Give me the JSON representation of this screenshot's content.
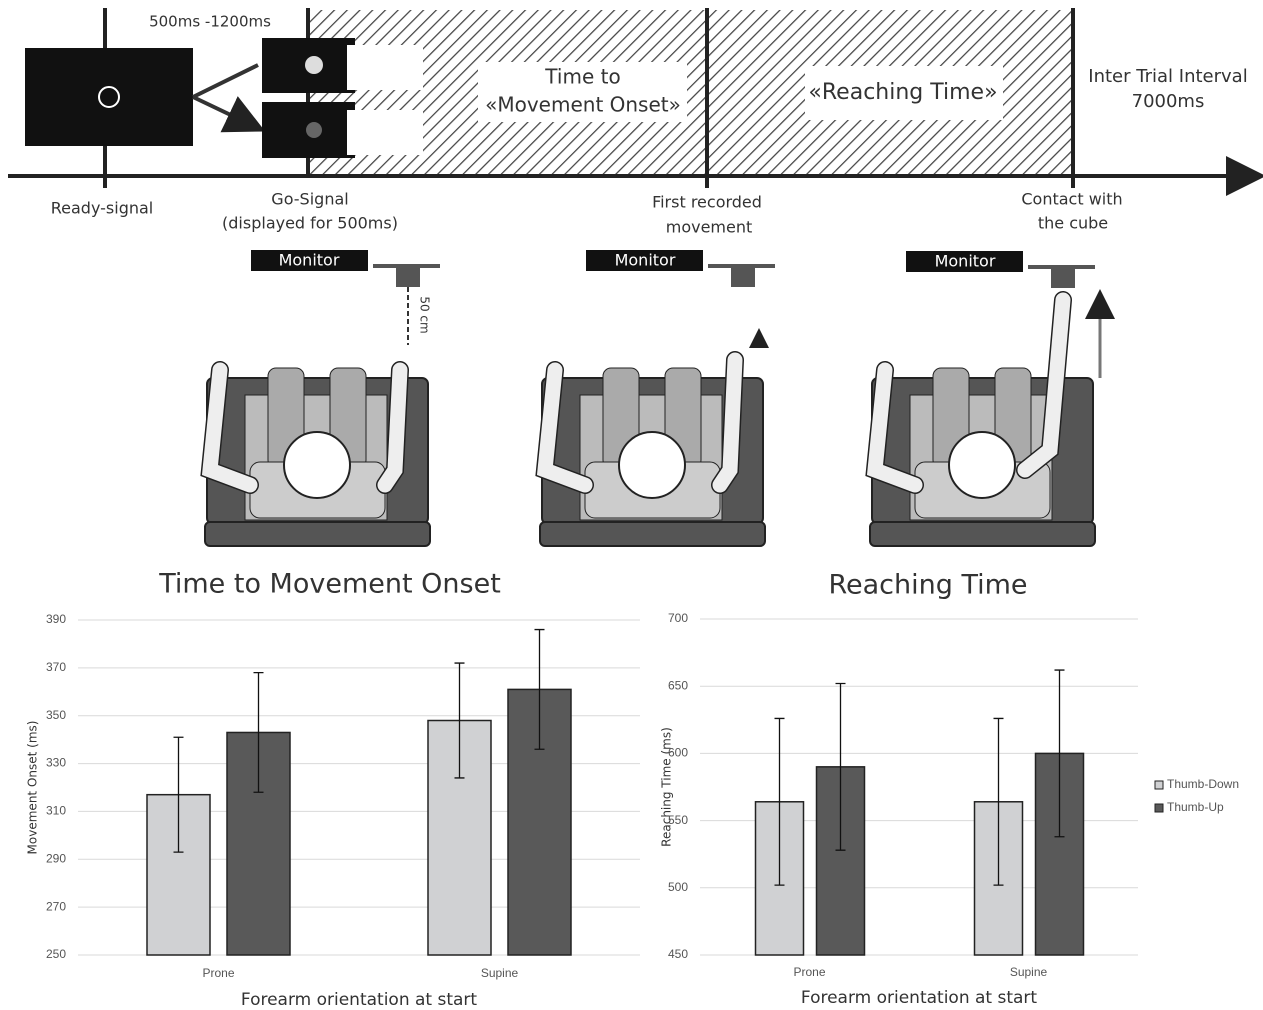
{
  "diagram": {
    "delay": "500ms -1200ms",
    "phases": [
      [
        "Time to",
        "«Movement Onset»"
      ],
      [
        "«Reaching Time»"
      ],
      [
        "Inter Trial Interval",
        "7000ms"
      ]
    ],
    "events": [
      [
        "Ready-signal"
      ],
      [
        "Go-Signal",
        "(displayed for 500ms)"
      ],
      [
        "First recorded",
        "movement"
      ],
      [
        "Contact with",
        "the cube"
      ]
    ],
    "setups": [
      {
        "monitor": "Monitor",
        "distance": "50 cm"
      },
      {
        "monitor": "Monitor"
      },
      {
        "monitor": "Monitor"
      }
    ]
  },
  "chart_data": [
    {
      "type": "bar",
      "title": "Time to Movement Onset",
      "y_label": "Movement Onset (ms)",
      "x_label": "Forearm orientation at start",
      "categories": [
        "Prone",
        "Supine"
      ],
      "series": [
        {
          "color": "#d0d1d3",
          "values": [
            317,
            348
          ],
          "errors": [
            24,
            24
          ]
        },
        {
          "color": "#595959",
          "values": [
            343,
            361
          ],
          "errors": [
            25,
            25
          ]
        }
      ],
      "ylim": [
        250,
        390
      ],
      "yticks": [
        250,
        270,
        290,
        310,
        330,
        350,
        370,
        390
      ],
      "grid": true
    },
    {
      "type": "bar",
      "title": "Reaching Time",
      "y_label": "Reaching Time (ms)",
      "x_label": "Forearm orientation at start",
      "categories": [
        "Prone",
        "Supine"
      ],
      "series": [
        {
          "name": "Thumb-Down",
          "color": "#d0d1d3",
          "values": [
            564,
            564
          ],
          "errors": [
            62,
            62
          ]
        },
        {
          "name": "Thumb-Up",
          "color": "#595959",
          "values": [
            590,
            600
          ],
          "errors": [
            62,
            62
          ]
        }
      ],
      "ylim": [
        450,
        700
      ],
      "yticks": [
        450,
        500,
        550,
        600,
        650,
        700
      ],
      "grid": true,
      "legend": "right"
    }
  ]
}
